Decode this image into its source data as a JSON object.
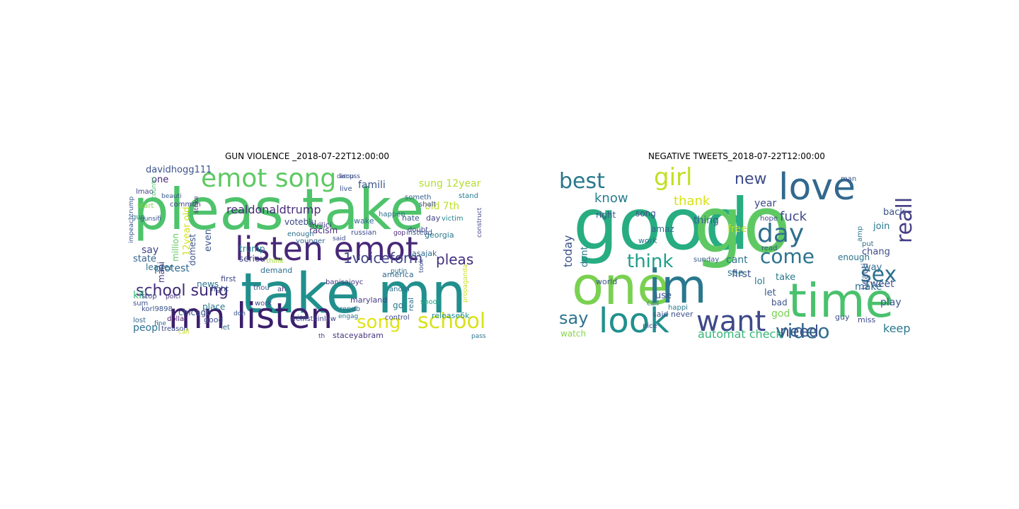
{
  "panels": [
    {
      "title": "GUN VIOLENCE _2018-07-22T12:00:00",
      "words": [
        {
          "text": "pleas take",
          "color": "#4ec36b"
        },
        {
          "text": "take mn",
          "color": "#21908d"
        },
        {
          "text": "listen emot",
          "color": "#482878"
        },
        {
          "text": "mn listen",
          "color": "#3b1f6b"
        },
        {
          "text": "emot song",
          "color": "#5ec962"
        },
        {
          "text": "school",
          "color": "#d8e219"
        },
        {
          "text": "song",
          "color": "#e0e31a"
        },
        {
          "text": "school sung",
          "color": "#3e2b78"
        },
        {
          "text": "1voiceform",
          "color": "#404688"
        },
        {
          "text": "pleas",
          "color": "#3f2e79"
        },
        {
          "text": "realdonaldtrump",
          "color": "#472c7a"
        },
        {
          "text": "famili",
          "color": "#3a5389"
        },
        {
          "text": "sung 12year",
          "color": "#b5de2b"
        },
        {
          "text": "old 7th",
          "color": "#bddf26"
        },
        {
          "text": "davidhogg111",
          "color": "#3b528b"
        },
        {
          "text": "one",
          "color": "#482677"
        },
        {
          "text": "say",
          "color": "#404688"
        },
        {
          "text": "state",
          "color": "#33638d"
        },
        {
          "text": "protest",
          "color": "#31688e"
        },
        {
          "text": "kill",
          "color": "#35b779"
        },
        {
          "text": "peopl",
          "color": "#2c728e"
        },
        {
          "text": "voteblu",
          "color": "#3e4989"
        },
        {
          "text": "racism",
          "color": "#472d7b"
        },
        {
          "text": "georgia",
          "color": "#2a788e"
        },
        {
          "text": "12year old",
          "color": "#d0e11c"
        },
        {
          "text": "even",
          "color": "#39568c"
        },
        {
          "text": "domest",
          "color": "#3b528b"
        },
        {
          "text": "trump",
          "color": "#26828e"
        },
        {
          "text": "seriou",
          "color": "#414487"
        },
        {
          "text": "demand",
          "color": "#2d708e"
        },
        {
          "text": "chicago",
          "color": "#3b528b"
        },
        {
          "text": "maryland",
          "color": "#433e85"
        },
        {
          "text": "staceyabram",
          "color": "#46337e"
        },
        {
          "text": "go",
          "color": "#2a788e"
        },
        {
          "text": "asajak",
          "color": "#2f6c8e"
        },
        {
          "text": "america",
          "color": "#31688e"
        },
        {
          "text": "release6k",
          "color": "#21908d"
        },
        {
          "text": "shalt",
          "color": "#3f4788"
        },
        {
          "text": "stand",
          "color": "#287d8e"
        },
        {
          "text": "victim",
          "color": "#25858e"
        },
        {
          "text": "hate",
          "color": "#38588c"
        },
        {
          "text": "day",
          "color": "#414487"
        },
        {
          "text": "wake",
          "color": "#31688e"
        },
        {
          "text": "happen",
          "color": "#2e6f8e"
        },
        {
          "text": "someth",
          "color": "#355f8d"
        },
        {
          "text": "doubt",
          "color": "#3e4a89"
        },
        {
          "text": "younger",
          "color": "#33638d"
        },
        {
          "text": "million",
          "color": "#5ec962"
        },
        {
          "text": "leader",
          "color": "#2e6e8e"
        },
        {
          "text": "news",
          "color": "#2c728e"
        },
        {
          "text": "fight",
          "color": "#3b528b"
        },
        {
          "text": "place",
          "color": "#2a788e"
        },
        {
          "text": "good",
          "color": "#3b528b"
        },
        {
          "text": "work",
          "color": "#3e4989"
        },
        {
          "text": "instead",
          "color": "#3a548c"
        },
        {
          "text": "anoth",
          "color": "#2d708e"
        },
        {
          "text": "control",
          "color": "#3f4889"
        },
        {
          "text": "gun",
          "color": "#2b758e"
        },
        {
          "text": "start",
          "color": "#86d549"
        },
        {
          "text": "lmao",
          "color": "#404688"
        },
        {
          "text": "commun",
          "color": "#404688"
        },
        {
          "text": "stop",
          "color": "#3c4f8a"
        },
        {
          "text": "mani",
          "color": "#46337e"
        },
        {
          "text": "enough",
          "color": "#2e6e8e"
        },
        {
          "text": "live",
          "color": "#3b528b"
        },
        {
          "text": "first",
          "color": "#3f4788"
        },
        {
          "text": "let",
          "color": "#31688e"
        },
        {
          "text": "shoot",
          "color": "#22a785"
        },
        {
          "text": "real",
          "color": "#2f6c8e"
        },
        {
          "text": "korl9898",
          "color": "#3b528b"
        },
        {
          "text": "iivilici",
          "color": "#453781"
        },
        {
          "text": "russian",
          "color": "#3e4989"
        },
        {
          "text": "lost",
          "color": "#31688e"
        },
        {
          "text": "sum",
          "color": "#3b528b"
        },
        {
          "text": "dollar",
          "color": "#48186a"
        },
        {
          "text": "treason",
          "color": "#3e4989"
        },
        {
          "text": "banisajoyc",
          "color": "#453581"
        },
        {
          "text": "thou",
          "color": "#38598c"
        },
        {
          "text": "ah",
          "color": "#453781"
        },
        {
          "text": "think",
          "color": "#a2da37"
        },
        {
          "text": "repub",
          "color": "#2e6f8e"
        },
        {
          "text": "weinsteinlaw",
          "color": "#424086"
        },
        {
          "text": "don",
          "color": "#3a548c"
        },
        {
          "text": "poici",
          "color": "#46327e"
        },
        {
          "text": "said",
          "color": "#3e4989"
        },
        {
          "text": "countri",
          "color": "#4ac16d"
        },
        {
          "text": "discuss",
          "color": "#3f4788"
        },
        {
          "text": "engag",
          "color": "#2c738e"
        },
        {
          "text": "fine",
          "color": "#31688e"
        },
        {
          "text": "call",
          "color": "#c2df23"
        },
        {
          "text": "th",
          "color": "#414487"
        },
        {
          "text": "gop",
          "color": "#482475"
        },
        {
          "text": "amp",
          "color": "#3b528b"
        },
        {
          "text": "putin",
          "color": "#2e6e8e"
        },
        {
          "text": "strike",
          "color": "#482878"
        },
        {
          "text": "took",
          "color": "#3d4e8a"
        },
        {
          "text": "propaganda",
          "color": "#cae11f"
        },
        {
          "text": "pass",
          "color": "#2c738e"
        },
        {
          "text": "gunsifi",
          "color": "#3b528b"
        },
        {
          "text": "impeachtrump",
          "color": "#39558c"
        },
        {
          "text": "construct",
          "color": "#404688"
        },
        {
          "text": "beauti",
          "color": "#38588c"
        },
        {
          "text": "isar",
          "color": "#3b528b"
        }
      ]
    },
    {
      "title": "NEGATIVE TWEETS_2018-07-22T12:00:00",
      "words": [
        {
          "text": "good",
          "color": "#27ad81"
        },
        {
          "text": "go",
          "color": "#5ec962"
        },
        {
          "text": "one",
          "color": "#7ad151"
        },
        {
          "text": "im",
          "color": "#2a788e"
        },
        {
          "text": "time",
          "color": "#4ac16d"
        },
        {
          "text": "love",
          "color": "#31688e"
        },
        {
          "text": "look",
          "color": "#21908d"
        },
        {
          "text": "want",
          "color": "#3e4989"
        },
        {
          "text": "best",
          "color": "#2a788e"
        },
        {
          "text": "girl",
          "color": "#c2df23"
        },
        {
          "text": "day",
          "color": "#2e6e8e"
        },
        {
          "text": "come",
          "color": "#2c728e"
        },
        {
          "text": "reall",
          "color": "#433e85"
        },
        {
          "text": "sex",
          "color": "#2d708e"
        },
        {
          "text": "video",
          "color": "#2f6c8e"
        },
        {
          "text": "think",
          "color": "#1f9e89"
        },
        {
          "text": "say",
          "color": "#2c738e"
        },
        {
          "text": "need",
          "color": "#3b528b"
        },
        {
          "text": "new",
          "color": "#3e4a89"
        },
        {
          "text": "know",
          "color": "#287c8e"
        },
        {
          "text": "thank",
          "color": "#d8e219"
        },
        {
          "text": "fuck",
          "color": "#3e4989"
        },
        {
          "text": "keep",
          "color": "#2a788e"
        },
        {
          "text": "year",
          "color": "#3e4a89"
        },
        {
          "text": "automat check",
          "color": "#35b779"
        },
        {
          "text": "today",
          "color": "#3b528b"
        },
        {
          "text": "dont",
          "color": "#2a788e"
        },
        {
          "text": "thing",
          "color": "#355f8d"
        },
        {
          "text": "tweet",
          "color": "#3b528b"
        },
        {
          "text": "make",
          "color": "#2d708e"
        },
        {
          "text": "play",
          "color": "#38588c"
        },
        {
          "text": "god",
          "color": "#7ad151"
        },
        {
          "text": "free",
          "color": "#b5de2b"
        },
        {
          "text": "cant",
          "color": "#2c738e"
        },
        {
          "text": "first",
          "color": "#3b528b"
        },
        {
          "text": "see",
          "color": "#2c728e"
        },
        {
          "text": "use",
          "color": "#3b528b"
        },
        {
          "text": "lol",
          "color": "#2a788e"
        },
        {
          "text": "let",
          "color": "#38598c"
        },
        {
          "text": "take",
          "color": "#2a788e"
        },
        {
          "text": "bad",
          "color": "#3b528b"
        },
        {
          "text": "beauti",
          "color": "#38588c"
        },
        {
          "text": "way",
          "color": "#2f6c8e"
        },
        {
          "text": "chang",
          "color": "#3e4989"
        },
        {
          "text": "join",
          "color": "#2a788e"
        },
        {
          "text": "back",
          "color": "#3b528b"
        },
        {
          "text": "enough",
          "color": "#2c738e"
        },
        {
          "text": "song",
          "color": "#3e4989"
        },
        {
          "text": "amaz",
          "color": "#31688e"
        },
        {
          "text": "right",
          "color": "#3a548c"
        },
        {
          "text": "work",
          "color": "#2c738e"
        },
        {
          "text": "world",
          "color": "#3b528b"
        },
        {
          "text": "miss",
          "color": "#3e4989"
        },
        {
          "text": "guy",
          "color": "#3b528b"
        },
        {
          "text": "watch",
          "color": "#86d549"
        },
        {
          "text": "said never",
          "color": "#3b528b"
        },
        {
          "text": "sunday",
          "color": "#38598c"
        },
        {
          "text": "hope",
          "color": "#3e4989"
        },
        {
          "text": "put",
          "color": "#2e6e8e"
        },
        {
          "text": "read",
          "color": "#3b528b"
        },
        {
          "text": "happi",
          "color": "#2a788e"
        },
        {
          "text": "nice",
          "color": "#3e4989"
        },
        {
          "text": "man",
          "color": "#3b528b"
        },
        {
          "text": "amp",
          "color": "#2a788e"
        },
        {
          "text": "call",
          "color": "#2c738e"
        }
      ]
    }
  ]
}
